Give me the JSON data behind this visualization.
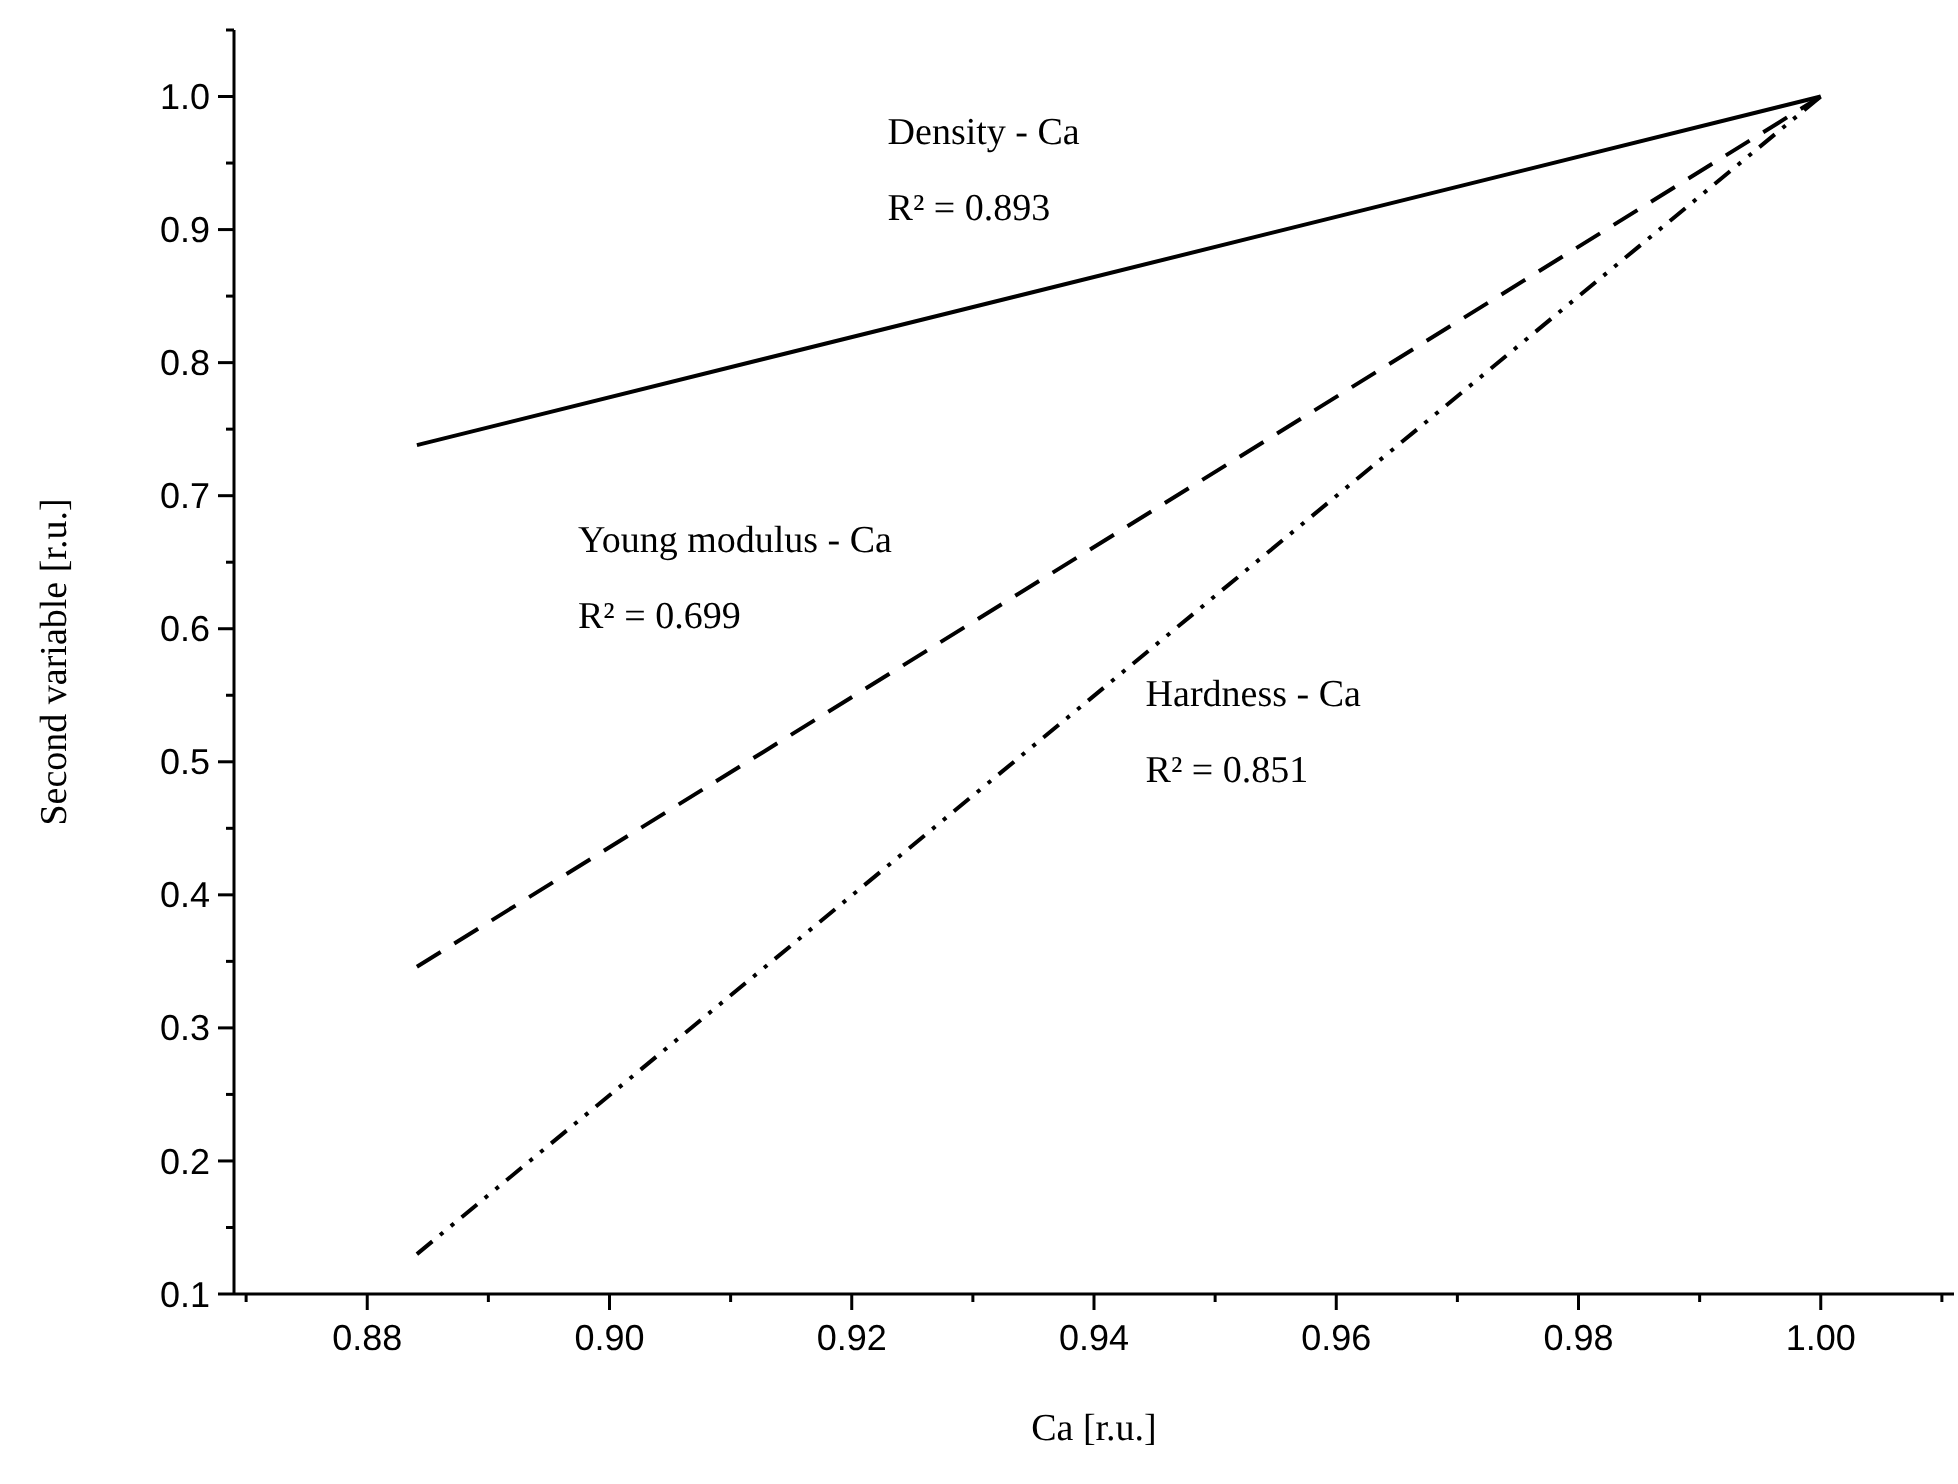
{
  "chart_data": {
    "type": "line",
    "xlabel": "Ca [r.u.]",
    "ylabel": "Second variable [r.u.]",
    "xlim": [
      0.869,
      1.011
    ],
    "xticks": [
      {
        "value": 0.88,
        "label": "0.88"
      },
      {
        "value": 0.9,
        "label": "0.90"
      },
      {
        "value": 0.92,
        "label": "0.92"
      },
      {
        "value": 0.94,
        "label": "0.94"
      },
      {
        "value": 0.96,
        "label": "0.96"
      },
      {
        "value": 0.98,
        "label": "0.98"
      },
      {
        "value": 1.0,
        "label": "1.00"
      }
    ],
    "ylim": [
      0.1,
      1.05
    ],
    "yticks": [
      0.1,
      0.2,
      0.3,
      0.4,
      0.5,
      0.6,
      0.7,
      0.8,
      0.9,
      {
        "value": 1.0,
        "label": "1.0"
      }
    ],
    "grid": false,
    "marker": "none",
    "x": [
      0.8841,
      1.0
    ],
    "series": [
      {
        "color": "#000000",
        "line_style": "solid",
        "values": [
          0.738,
          1.0
        ]
      },
      {
        "color": "#000000",
        "line_style": "dashed",
        "values": [
          0.346,
          1.0
        ]
      },
      {
        "color": "#000000",
        "line_style": "dotted",
        "values": [
          0.13,
          1.0
        ]
      }
    ],
    "annotations": [
      "Density - Ca",
      "R² = 0.893",
      "Young modulus - Ca",
      "R² = 0.699",
      "Hardness - Ca",
      "R² = 0.851"
    ]
  }
}
